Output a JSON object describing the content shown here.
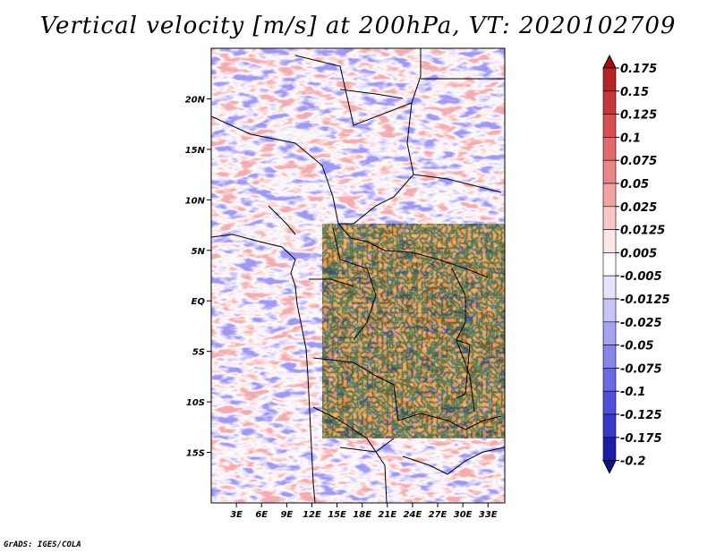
{
  "title": "Vertical velocity [m/s] at 200hPa, VT: 2020102709",
  "credit": "GrADS: IGES/COLA",
  "map": {
    "lat_labels": [
      "20N",
      "15N",
      "10N",
      "5N",
      "EQ",
      "5S",
      "10S",
      "15S"
    ],
    "lat_values": [
      20,
      15,
      10,
      5,
      0,
      -5,
      -10,
      -15
    ],
    "lon_labels": [
      "3E",
      "6E",
      "9E",
      "12E",
      "15E",
      "18E",
      "21E",
      "24E",
      "27E",
      "30E",
      "33E"
    ],
    "lon_values": [
      3,
      6,
      9,
      12,
      15,
      18,
      21,
      24,
      27,
      30,
      33
    ],
    "lon_range": [
      0,
      35
    ],
    "lat_range": [
      -20,
      25
    ]
  },
  "colorbar": {
    "labels": [
      "0.175",
      "0.15",
      "0.125",
      "0.1",
      "0.075",
      "0.05",
      "0.025",
      "0.0125",
      "0.005",
      "-0.005",
      "-0.0125",
      "-0.025",
      "-0.05",
      "-0.075",
      "-0.1",
      "-0.125",
      "-0.175",
      "-0.2"
    ],
    "colors": [
      "#a01010",
      "#b62424",
      "#c83838",
      "#d85050",
      "#e26a6a",
      "#ea8686",
      "#f2a4a4",
      "#f8c6c6",
      "#fce6e6",
      "#ffffff",
      "#e4e4fc",
      "#c6c6f8",
      "#a4a4f2",
      "#8686ea",
      "#6a6ae2",
      "#5050d8",
      "#3838c8",
      "#1c1ca8",
      "#10108a"
    ]
  }
}
